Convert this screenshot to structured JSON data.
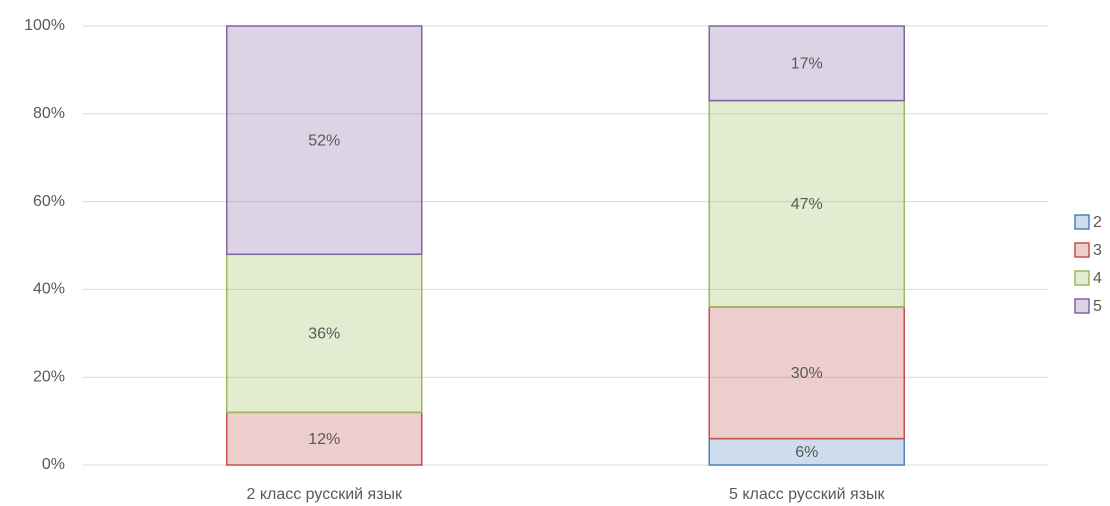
{
  "chart_data": {
    "type": "stacked_bar",
    "categories": [
      "2 класс русский язык",
      "5 класс русский язык"
    ],
    "series": [
      {
        "name": "2",
        "color": "#4f81bd",
        "values": [
          0,
          6
        ],
        "value_labels": [
          null,
          "6%"
        ]
      },
      {
        "name": "3",
        "color": "#c0504d",
        "values": [
          12,
          30
        ],
        "value_labels": [
          "12%",
          "30%"
        ]
      },
      {
        "name": "4",
        "color": "#9bbb59",
        "values": [
          36,
          47
        ],
        "value_labels": [
          "36%",
          "47%"
        ]
      },
      {
        "name": "5",
        "color": "#8064a2",
        "values": [
          52,
          17
        ],
        "value_labels": [
          "52%",
          "17%"
        ]
      }
    ],
    "ylim": [
      0,
      100
    ],
    "yticks": [
      {
        "value": 0,
        "label": "0%"
      },
      {
        "value": 20,
        "label": "20%"
      },
      {
        "value": 40,
        "label": "40%"
      },
      {
        "value": 60,
        "label": "60%"
      },
      {
        "value": 80,
        "label": "80%"
      },
      {
        "value": 100,
        "label": "100%"
      }
    ],
    "grid": true,
    "legend": "right"
  }
}
